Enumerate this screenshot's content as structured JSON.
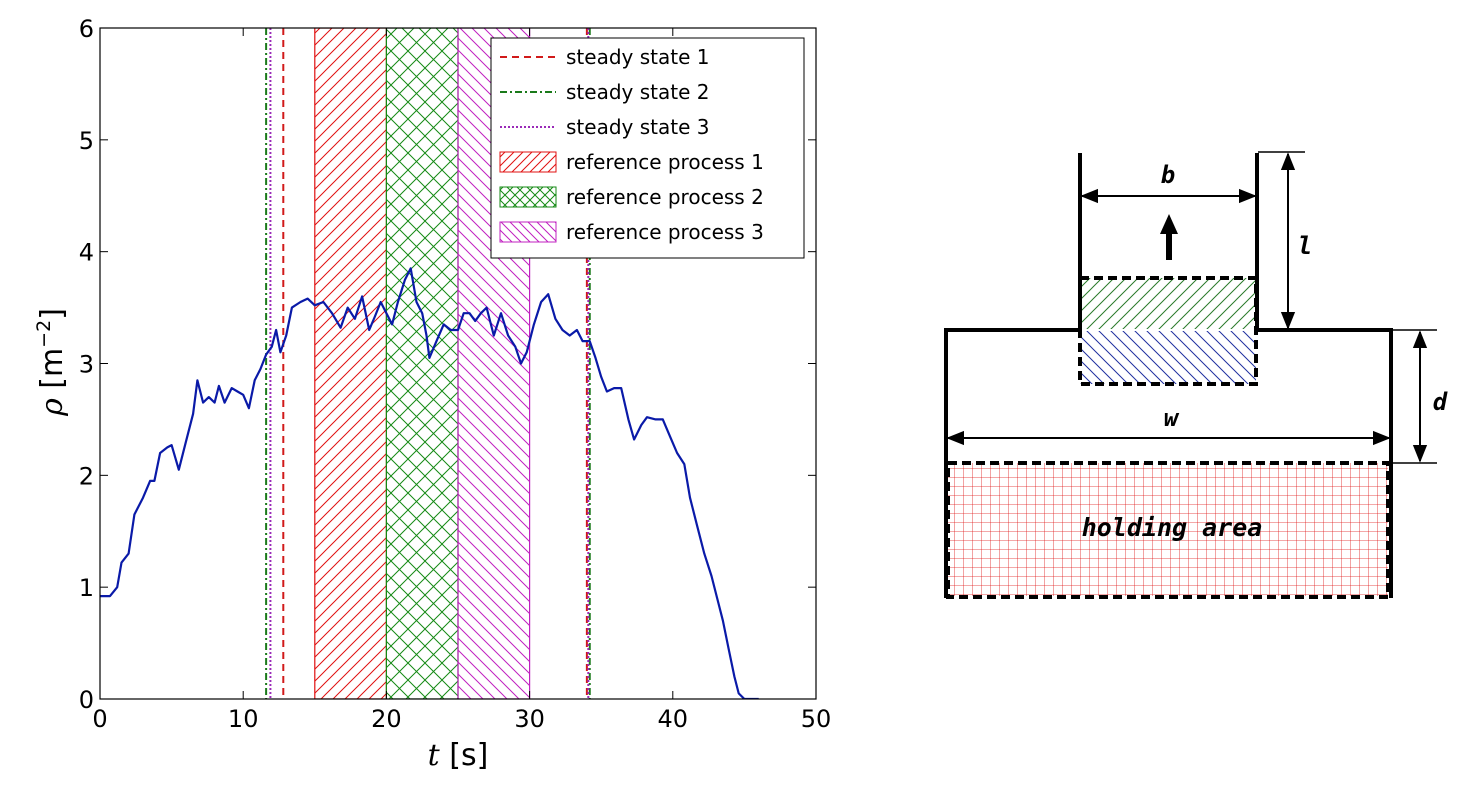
{
  "chart_data": {
    "type": "line",
    "xlabel_var": "t",
    "xlabel_unit": " [s]",
    "ylabel_var": "ρ",
    "ylabel_unit": " [m",
    "ylabel_exp": "−2",
    "ylabel_close": "]",
    "xlim": [
      0,
      50
    ],
    "ylim": [
      0,
      6
    ],
    "xticks": [
      0,
      10,
      20,
      30,
      40,
      50
    ],
    "yticks": [
      0,
      1,
      2,
      3,
      4,
      5,
      6
    ],
    "grid": false,
    "legend_position": "top-right",
    "series": [
      {
        "color": "#0a1aa8",
        "points": [
          [
            0.0,
            0.92
          ],
          [
            0.7,
            0.92
          ],
          [
            1.2,
            1.0
          ],
          [
            1.5,
            1.22
          ],
          [
            2.0,
            1.3
          ],
          [
            2.4,
            1.65
          ],
          [
            3.0,
            1.8
          ],
          [
            3.5,
            1.95
          ],
          [
            3.8,
            1.95
          ],
          [
            4.2,
            2.2
          ],
          [
            4.7,
            2.25
          ],
          [
            5.0,
            2.27
          ],
          [
            5.5,
            2.05
          ],
          [
            6.0,
            2.3
          ],
          [
            6.5,
            2.55
          ],
          [
            6.8,
            2.85
          ],
          [
            7.2,
            2.65
          ],
          [
            7.6,
            2.7
          ],
          [
            8.0,
            2.65
          ],
          [
            8.3,
            2.8
          ],
          [
            8.7,
            2.65
          ],
          [
            9.2,
            2.78
          ],
          [
            9.6,
            2.75
          ],
          [
            10.0,
            2.72
          ],
          [
            10.4,
            2.6
          ],
          [
            10.8,
            2.85
          ],
          [
            11.2,
            2.95
          ],
          [
            11.6,
            3.08
          ],
          [
            12.0,
            3.15
          ],
          [
            12.3,
            3.3
          ],
          [
            12.6,
            3.1
          ],
          [
            13.0,
            3.25
          ],
          [
            13.4,
            3.5
          ],
          [
            14.0,
            3.55
          ],
          [
            14.5,
            3.58
          ],
          [
            15.0,
            3.52
          ],
          [
            15.6,
            3.55
          ],
          [
            16.2,
            3.45
          ],
          [
            16.8,
            3.32
          ],
          [
            17.3,
            3.5
          ],
          [
            17.8,
            3.4
          ],
          [
            18.3,
            3.6
          ],
          [
            18.8,
            3.3
          ],
          [
            19.2,
            3.42
          ],
          [
            19.6,
            3.55
          ],
          [
            20.0,
            3.45
          ],
          [
            20.4,
            3.35
          ],
          [
            20.8,
            3.55
          ],
          [
            21.3,
            3.75
          ],
          [
            21.7,
            3.85
          ],
          [
            22.1,
            3.55
          ],
          [
            22.5,
            3.45
          ],
          [
            22.8,
            3.25
          ],
          [
            23.0,
            3.05
          ],
          [
            23.5,
            3.2
          ],
          [
            24.0,
            3.35
          ],
          [
            24.5,
            3.3
          ],
          [
            25.0,
            3.3
          ],
          [
            25.4,
            3.45
          ],
          [
            25.8,
            3.45
          ],
          [
            26.2,
            3.38
          ],
          [
            26.6,
            3.45
          ],
          [
            27.0,
            3.5
          ],
          [
            27.5,
            3.25
          ],
          [
            28.0,
            3.45
          ],
          [
            28.5,
            3.25
          ],
          [
            29.0,
            3.15
          ],
          [
            29.4,
            3.0
          ],
          [
            29.8,
            3.1
          ],
          [
            30.3,
            3.35
          ],
          [
            30.8,
            3.55
          ],
          [
            31.3,
            3.62
          ],
          [
            31.8,
            3.4
          ],
          [
            32.3,
            3.3
          ],
          [
            32.8,
            3.25
          ],
          [
            33.3,
            3.3
          ],
          [
            33.7,
            3.2
          ],
          [
            34.2,
            3.2
          ],
          [
            34.6,
            3.05
          ],
          [
            35.0,
            2.88
          ],
          [
            35.4,
            2.75
          ],
          [
            35.9,
            2.78
          ],
          [
            36.4,
            2.78
          ],
          [
            36.9,
            2.5
          ],
          [
            37.3,
            2.32
          ],
          [
            37.8,
            2.45
          ],
          [
            38.2,
            2.52
          ],
          [
            38.8,
            2.5
          ],
          [
            39.3,
            2.5
          ],
          [
            39.8,
            2.35
          ],
          [
            40.3,
            2.2
          ],
          [
            40.8,
            2.1
          ],
          [
            41.2,
            1.8
          ],
          [
            41.7,
            1.55
          ],
          [
            42.2,
            1.3
          ],
          [
            42.7,
            1.1
          ],
          [
            43.1,
            0.9
          ],
          [
            43.5,
            0.7
          ],
          [
            43.9,
            0.45
          ],
          [
            44.3,
            0.2
          ],
          [
            44.6,
            0.05
          ],
          [
            45.0,
            0.0
          ],
          [
            46.0,
            0.0
          ]
        ]
      }
    ],
    "vlines": [
      {
        "label": "steady state 1",
        "color": "#d11a1a",
        "dash": "7,5",
        "x": [
          12.8,
          34.0
        ]
      },
      {
        "label": "steady state 2",
        "color": "#1a7a1a",
        "dash": "7,3,2,3",
        "x": [
          11.6,
          34.2
        ]
      },
      {
        "label": "steady state 3",
        "color": "#9a2ab8",
        "dash": "2,2",
        "x": [
          11.9,
          34.1
        ]
      }
    ],
    "spans": [
      {
        "label": "reference process 1",
        "color": "#e01010",
        "pattern": "slash",
        "x0": 15,
        "x1": 20
      },
      {
        "label": "reference process 2",
        "color": "#158a15",
        "pattern": "cross",
        "x0": 20,
        "x1": 25
      },
      {
        "label": "reference process 3",
        "color": "#c020c0",
        "pattern": "backslash",
        "x0": 25,
        "x1": 30
      }
    ]
  },
  "diagram": {
    "label_b": "b",
    "label_l": "l",
    "label_d": "d",
    "label_w": "w",
    "holding_area": "holding area",
    "colors": {
      "corridor_hatch": "#2a7a2a",
      "entrance_hatch": "#2030a0",
      "holding_grid": "#e01818"
    }
  }
}
